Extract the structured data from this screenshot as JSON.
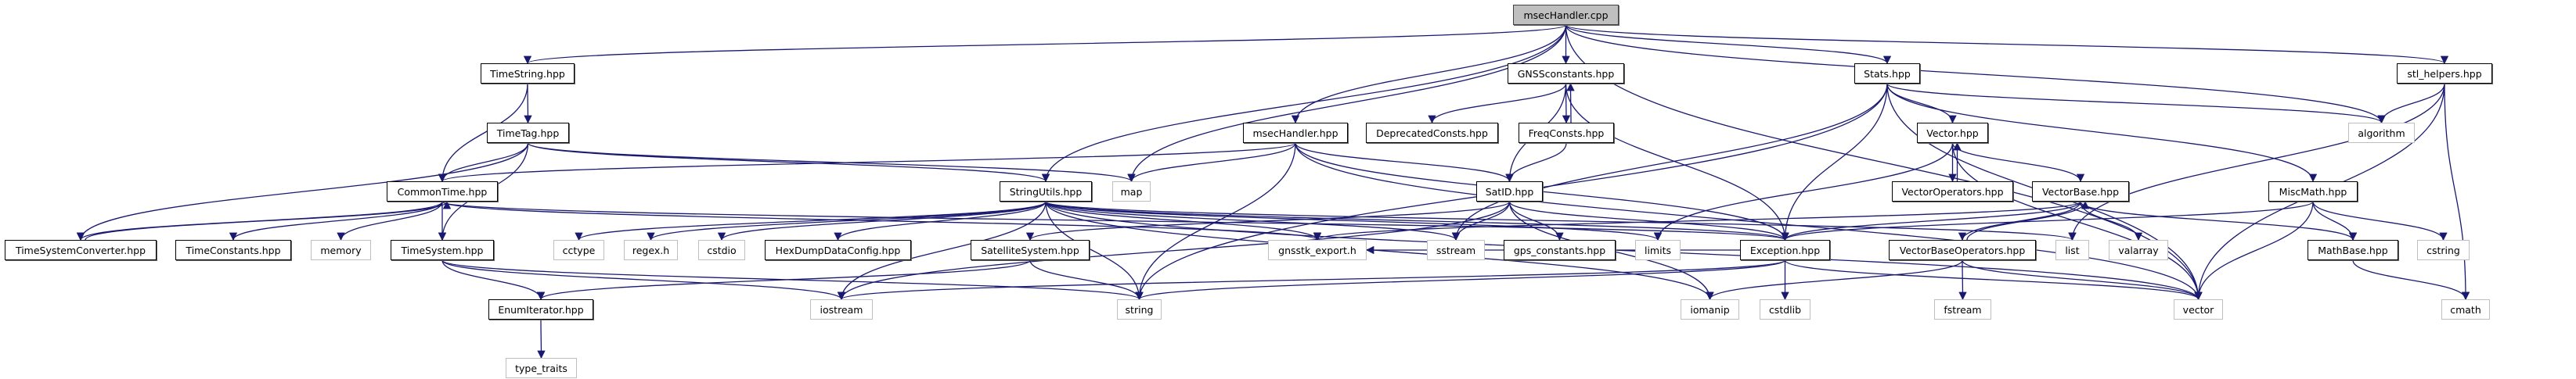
{
  "diagram": {
    "type": "include-dependency-graph",
    "edge_color": "#191970",
    "documented_border_color": "#000000",
    "external_border_color": "#bfbfbf",
    "root_fill_color": "#bfbfbf",
    "nodes": [
      {
        "id": "msecHandler_cpp",
        "label": "msecHandler.cpp",
        "kind": "root"
      },
      {
        "id": "TimeString",
        "label": "TimeString.hpp",
        "kind": "documented"
      },
      {
        "id": "GNSSconstants",
        "label": "GNSSconstants.hpp",
        "kind": "documented"
      },
      {
        "id": "Stats",
        "label": "Stats.hpp",
        "kind": "documented"
      },
      {
        "id": "stl_helpers",
        "label": "stl_helpers.hpp",
        "kind": "documented"
      },
      {
        "id": "TimeTag",
        "label": "TimeTag.hpp",
        "kind": "documented"
      },
      {
        "id": "msecHandler_hpp",
        "label": "msecHandler.hpp",
        "kind": "documented"
      },
      {
        "id": "DeprecatedConsts",
        "label": "DeprecatedConsts.hpp",
        "kind": "documented"
      },
      {
        "id": "FreqConsts",
        "label": "FreqConsts.hpp",
        "kind": "documented"
      },
      {
        "id": "Vector",
        "label": "Vector.hpp",
        "kind": "documented"
      },
      {
        "id": "algorithm",
        "label": "algorithm",
        "kind": "external"
      },
      {
        "id": "CommonTime",
        "label": "CommonTime.hpp",
        "kind": "documented"
      },
      {
        "id": "StringUtils",
        "label": "StringUtils.hpp",
        "kind": "documented"
      },
      {
        "id": "map",
        "label": "map",
        "kind": "external"
      },
      {
        "id": "SatID",
        "label": "SatID.hpp",
        "kind": "documented"
      },
      {
        "id": "VectorOperators",
        "label": "VectorOperators.hpp",
        "kind": "documented"
      },
      {
        "id": "VectorBase",
        "label": "VectorBase.hpp",
        "kind": "documented"
      },
      {
        "id": "MiscMath",
        "label": "MiscMath.hpp",
        "kind": "documented"
      },
      {
        "id": "TimeSystemConverter",
        "label": "TimeSystemConverter.hpp",
        "kind": "documented"
      },
      {
        "id": "TimeConstants",
        "label": "TimeConstants.hpp",
        "kind": "documented"
      },
      {
        "id": "memory",
        "label": "memory",
        "kind": "external"
      },
      {
        "id": "TimeSystem",
        "label": "TimeSystem.hpp",
        "kind": "documented"
      },
      {
        "id": "cctype",
        "label": "cctype",
        "kind": "external"
      },
      {
        "id": "regex_h",
        "label": "regex.h",
        "kind": "external"
      },
      {
        "id": "cstdio",
        "label": "cstdio",
        "kind": "external"
      },
      {
        "id": "HexDumpDataConfig",
        "label": "HexDumpDataConfig.hpp",
        "kind": "documented"
      },
      {
        "id": "SatelliteSystem",
        "label": "SatelliteSystem.hpp",
        "kind": "documented"
      },
      {
        "id": "gnsstk_export",
        "label": "gnsstk_export.h",
        "kind": "external"
      },
      {
        "id": "sstream",
        "label": "sstream",
        "kind": "external"
      },
      {
        "id": "gps_constants",
        "label": "gps_constants.hpp",
        "kind": "documented"
      },
      {
        "id": "limits",
        "label": "limits",
        "kind": "external"
      },
      {
        "id": "Exception",
        "label": "Exception.hpp",
        "kind": "documented"
      },
      {
        "id": "VectorBaseOperators",
        "label": "VectorBaseOperators.hpp",
        "kind": "documented"
      },
      {
        "id": "list",
        "label": "list",
        "kind": "external"
      },
      {
        "id": "valarray",
        "label": "valarray",
        "kind": "external"
      },
      {
        "id": "MathBase",
        "label": "MathBase.hpp",
        "kind": "documented"
      },
      {
        "id": "cstring",
        "label": "cstring",
        "kind": "external"
      },
      {
        "id": "EnumIterator",
        "label": "EnumIterator.hpp",
        "kind": "documented"
      },
      {
        "id": "iostream",
        "label": "iostream",
        "kind": "external"
      },
      {
        "id": "string",
        "label": "string",
        "kind": "external"
      },
      {
        "id": "iomanip",
        "label": "iomanip",
        "kind": "external"
      },
      {
        "id": "cstdlib",
        "label": "cstdlib",
        "kind": "external"
      },
      {
        "id": "fstream",
        "label": "fstream",
        "kind": "external"
      },
      {
        "id": "vector",
        "label": "vector",
        "kind": "external"
      },
      {
        "id": "cmath",
        "label": "cmath",
        "kind": "external"
      },
      {
        "id": "type_traits",
        "label": "type_traits",
        "kind": "external"
      }
    ],
    "edges": [
      [
        "msecHandler_cpp",
        "TimeString"
      ],
      [
        "msecHandler_cpp",
        "StringUtils"
      ],
      [
        "msecHandler_cpp",
        "map"
      ],
      [
        "msecHandler_cpp",
        "msecHandler_hpp"
      ],
      [
        "msecHandler_cpp",
        "GNSSconstants"
      ],
      [
        "msecHandler_cpp",
        "Stats"
      ],
      [
        "msecHandler_cpp",
        "stl_helpers"
      ],
      [
        "msecHandler_cpp",
        "algorithm"
      ],
      [
        "msecHandler_cpp",
        "vector"
      ],
      [
        "TimeString",
        "TimeTag"
      ],
      [
        "TimeString",
        "CommonTime"
      ],
      [
        "TimeTag",
        "CommonTime"
      ],
      [
        "TimeTag",
        "TimeSystem"
      ],
      [
        "TimeTag",
        "TimeSystemConverter"
      ],
      [
        "TimeTag",
        "StringUtils"
      ],
      [
        "TimeTag",
        "map"
      ],
      [
        "CommonTime",
        "TimeSystemConverter"
      ],
      [
        "CommonTime",
        "TimeConstants"
      ],
      [
        "CommonTime",
        "memory"
      ],
      [
        "CommonTime",
        "TimeSystem"
      ],
      [
        "CommonTime",
        "Exception"
      ],
      [
        "CommonTime",
        "gnsstk_export"
      ],
      [
        "TimeSystemConverter",
        "CommonTime"
      ],
      [
        "TimeSystem",
        "EnumIterator"
      ],
      [
        "TimeSystem",
        "iostream"
      ],
      [
        "TimeSystem",
        "string"
      ],
      [
        "EnumIterator",
        "type_traits"
      ],
      [
        "StringUtils",
        "cctype"
      ],
      [
        "StringUtils",
        "regex_h"
      ],
      [
        "StringUtils",
        "cstdio"
      ],
      [
        "StringUtils",
        "HexDumpDataConfig"
      ],
      [
        "StringUtils",
        "Exception"
      ],
      [
        "StringUtils",
        "string"
      ],
      [
        "StringUtils",
        "sstream"
      ],
      [
        "StringUtils",
        "iostream"
      ],
      [
        "StringUtils",
        "iomanip"
      ],
      [
        "StringUtils",
        "limits"
      ],
      [
        "StringUtils",
        "list"
      ],
      [
        "StringUtils",
        "vector"
      ],
      [
        "StringUtils",
        "gnsstk_export"
      ],
      [
        "msecHandler_hpp",
        "CommonTime"
      ],
      [
        "msecHandler_hpp",
        "map"
      ],
      [
        "msecHandler_hpp",
        "string"
      ],
      [
        "msecHandler_hpp",
        "SatID"
      ],
      [
        "msecHandler_hpp",
        "Exception"
      ],
      [
        "msecHandler_hpp",
        "vector"
      ],
      [
        "GNSSconstants",
        "DeprecatedConsts"
      ],
      [
        "GNSSconstants",
        "FreqConsts"
      ],
      [
        "GNSSconstants",
        "SatID"
      ],
      [
        "GNSSconstants",
        "Exception"
      ],
      [
        "FreqConsts",
        "GNSSconstants"
      ],
      [
        "FreqConsts",
        "SatID"
      ],
      [
        "SatID",
        "SatelliteSystem"
      ],
      [
        "SatID",
        "sstream"
      ],
      [
        "SatID",
        "gps_constants"
      ],
      [
        "SatID",
        "iomanip"
      ],
      [
        "SatID",
        "iostream"
      ],
      [
        "SatID",
        "Exception"
      ],
      [
        "SatelliteSystem",
        "string"
      ],
      [
        "SatelliteSystem",
        "EnumIterator"
      ],
      [
        "Exception",
        "cstdlib"
      ],
      [
        "Exception",
        "iostream"
      ],
      [
        "Exception",
        "string"
      ],
      [
        "Exception",
        "vector"
      ],
      [
        "Exception",
        "gnsstk_export"
      ],
      [
        "Stats",
        "Vector"
      ],
      [
        "Stats",
        "MiscMath"
      ],
      [
        "Stats",
        "Exception"
      ],
      [
        "Stats",
        "algorithm"
      ],
      [
        "Stats",
        "vector"
      ],
      [
        "Stats",
        "string"
      ],
      [
        "Stats",
        "sstream"
      ],
      [
        "Vector",
        "VectorOperators"
      ],
      [
        "Vector",
        "VectorBase"
      ],
      [
        "Vector",
        "vector"
      ],
      [
        "Vector",
        "limits"
      ],
      [
        "VectorOperators",
        "Vector"
      ],
      [
        "VectorBase",
        "VectorBaseOperators"
      ],
      [
        "VectorBase",
        "valarray"
      ],
      [
        "VectorBase",
        "Exception"
      ],
      [
        "VectorBase",
        "MathBase"
      ],
      [
        "VectorBase",
        "gnsstk_export"
      ],
      [
        "VectorBaseOperators",
        "VectorBase"
      ],
      [
        "VectorBaseOperators",
        "fstream"
      ],
      [
        "VectorBaseOperators",
        "vector"
      ],
      [
        "VectorBaseOperators",
        "iomanip"
      ],
      [
        "MiscMath",
        "MathBase"
      ],
      [
        "MiscMath",
        "cstring"
      ],
      [
        "MiscMath",
        "vector"
      ],
      [
        "MiscMath",
        "Exception"
      ],
      [
        "MathBase",
        "cmath"
      ],
      [
        "stl_helpers",
        "algorithm"
      ],
      [
        "stl_helpers",
        "list"
      ],
      [
        "stl_helpers",
        "vector"
      ],
      [
        "stl_helpers",
        "cmath"
      ]
    ]
  }
}
